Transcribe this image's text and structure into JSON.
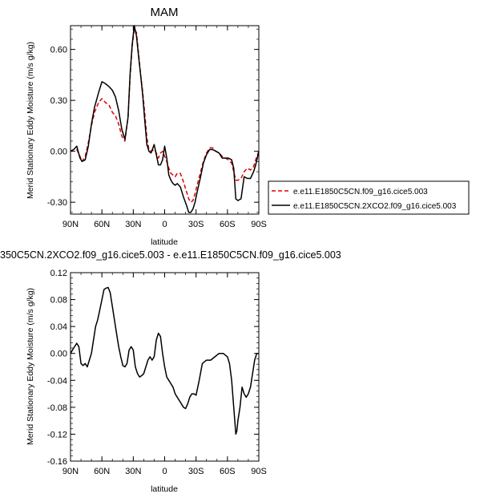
{
  "chart_data": [
    {
      "type": "line",
      "title": "MAM",
      "xlabel": "latitude",
      "ylabel": "Merid Stationary Eddy Moisture (m/s g/kg)",
      "xlim": [
        90,
        -90
      ],
      "ylim": [
        -0.37,
        0.74
      ],
      "xticks": [
        90,
        60,
        30,
        0,
        -30,
        -60,
        -90
      ],
      "xticklabels": [
        "90N",
        "60N",
        "30N",
        "0",
        "30S",
        "60S",
        "90S"
      ],
      "yticks": [
        -0.3,
        0.0,
        0.3,
        0.6
      ],
      "yticklabels": [
        "-0.30",
        "0.00",
        "0.30",
        "0.60"
      ],
      "legend_position": "right",
      "series": [
        {
          "name": "e.e11.E1850C5CN.f09_g16.cice5.003",
          "color": "#dd0000",
          "dash": "dashed",
          "x": [
            90,
            87,
            84,
            81,
            79,
            76,
            73,
            70,
            67,
            63,
            60,
            57,
            53,
            50,
            47,
            44,
            41,
            38,
            35,
            33,
            31,
            29,
            27,
            25,
            23,
            21,
            19,
            17,
            15,
            13,
            10,
            8,
            6,
            4,
            2,
            0,
            -2,
            -4,
            -6,
            -8,
            -10,
            -12,
            -15,
            -18,
            -21,
            -23,
            -25,
            -27,
            -29,
            -31,
            -34,
            -37,
            -40,
            -43,
            -46,
            -49,
            -52,
            -55,
            -58,
            -61,
            -64,
            -66,
            -68,
            -70,
            -73,
            -76,
            -79,
            -82,
            -85,
            -87,
            -90
          ],
          "y": [
            0.0,
            0.01,
            0.01,
            -0.03,
            -0.06,
            -0.03,
            0.05,
            0.15,
            0.23,
            0.29,
            0.31,
            0.29,
            0.27,
            0.23,
            0.21,
            0.16,
            0.09,
            0.06,
            0.2,
            0.44,
            0.62,
            0.72,
            0.7,
            0.58,
            0.45,
            0.35,
            0.22,
            0.08,
            0.01,
            0.0,
            0.01,
            -0.01,
            -0.04,
            -0.01,
            0.0,
            -0.03,
            -0.06,
            -0.1,
            -0.13,
            -0.14,
            -0.15,
            -0.13,
            -0.13,
            -0.18,
            -0.24,
            -0.28,
            -0.3,
            -0.29,
            -0.25,
            -0.2,
            -0.13,
            -0.06,
            -0.01,
            0.02,
            0.02,
            0.0,
            -0.01,
            -0.03,
            -0.04,
            -0.05,
            -0.07,
            -0.12,
            -0.17,
            -0.17,
            -0.16,
            -0.12,
            -0.1,
            -0.11,
            -0.09,
            -0.05,
            0.0
          ]
        },
        {
          "name": "e.e11.E1850C5CN.2XCO2.f09_g16.cice5.003",
          "color": "#000000",
          "dash": "solid",
          "x": [
            90,
            87,
            84,
            81,
            79,
            76,
            73,
            70,
            67,
            63,
            60,
            57,
            53,
            50,
            47,
            44,
            41,
            38,
            35,
            33,
            31,
            29,
            27,
            25,
            23,
            21,
            19,
            17,
            15,
            13,
            10,
            8,
            6,
            4,
            2,
            0,
            -2,
            -4,
            -6,
            -8,
            -10,
            -12,
            -15,
            -18,
            -21,
            -23,
            -25,
            -27,
            -29,
            -31,
            -34,
            -37,
            -40,
            -43,
            -46,
            -49,
            -52,
            -55,
            -58,
            -61,
            -64,
            -66,
            -68,
            -70,
            -73,
            -76,
            -79,
            -82,
            -85,
            -87,
            -90
          ],
          "y": [
            0.0,
            0.01,
            0.03,
            -0.04,
            -0.06,
            -0.05,
            0.03,
            0.16,
            0.26,
            0.35,
            0.41,
            0.4,
            0.38,
            0.36,
            0.32,
            0.24,
            0.13,
            0.07,
            0.2,
            0.46,
            0.63,
            0.74,
            0.68,
            0.56,
            0.45,
            0.33,
            0.18,
            0.04,
            0.0,
            -0.01,
            0.04,
            -0.02,
            -0.08,
            -0.08,
            -0.05,
            0.03,
            -0.04,
            -0.14,
            -0.17,
            -0.19,
            -0.2,
            -0.19,
            -0.21,
            -0.27,
            -0.32,
            -0.36,
            -0.36,
            -0.34,
            -0.3,
            -0.24,
            -0.16,
            -0.07,
            -0.02,
            0.01,
            0.01,
            0.0,
            -0.01,
            -0.04,
            -0.04,
            -0.04,
            -0.05,
            -0.1,
            -0.28,
            -0.29,
            -0.28,
            -0.15,
            -0.16,
            -0.16,
            -0.12,
            -0.08,
            0.0
          ]
        }
      ]
    },
    {
      "type": "line",
      "title": "350C5CN.2XCO2.f09_g16.cice5.003 - e.e11.E1850C5CN.f09_g16.cice5.003",
      "xlabel": "latitude",
      "ylabel": "Merid Stationary Eddy Moisture (m/s g/kg)",
      "xlim": [
        90,
        -90
      ],
      "ylim": [
        -0.16,
        0.12
      ],
      "xticks": [
        90,
        60,
        30,
        0,
        -30,
        -60,
        -90
      ],
      "xticklabels": [
        "90N",
        "60N",
        "30N",
        "0",
        "30S",
        "60S",
        "90S"
      ],
      "yticks": [
        -0.16,
        -0.12,
        -0.08,
        -0.04,
        0.0,
        0.04,
        0.08,
        0.12
      ],
      "yticklabels": [
        "-0.16",
        "-0.12",
        "-0.08",
        "-0.04",
        "0.00",
        "0.04",
        "0.08",
        "0.12"
      ],
      "series": [
        {
          "color": "#000000",
          "dash": "solid",
          "x": [
            90,
            87,
            84,
            82,
            80,
            78,
            76,
            74,
            72,
            70,
            68,
            66,
            64,
            62,
            60,
            58,
            56,
            54,
            52,
            50,
            48,
            46,
            44,
            42,
            40,
            38,
            36,
            34,
            32,
            30,
            28,
            26,
            24,
            22,
            20,
            18,
            16,
            14,
            12,
            10,
            8,
            6,
            4,
            2,
            0,
            -2,
            -4,
            -6,
            -8,
            -10,
            -12,
            -14,
            -16,
            -18,
            -20,
            -22,
            -24,
            -26,
            -28,
            -30,
            -33,
            -36,
            -40,
            -44,
            -48,
            -52,
            -56,
            -60,
            -62,
            -64,
            -66,
            -67,
            -68,
            -69,
            -70,
            -72,
            -74,
            -76,
            -78,
            -80,
            -82,
            -84,
            -86,
            -88,
            -90
          ],
          "y": [
            0.0,
            0.008,
            0.015,
            0.01,
            -0.015,
            -0.018,
            -0.015,
            -0.02,
            -0.01,
            0.0,
            0.02,
            0.04,
            0.05,
            0.065,
            0.08,
            0.095,
            0.097,
            0.098,
            0.09,
            0.07,
            0.05,
            0.03,
            0.01,
            -0.005,
            -0.018,
            -0.02,
            -0.015,
            0.005,
            0.01,
            0.005,
            -0.02,
            -0.03,
            -0.035,
            -0.033,
            -0.03,
            -0.02,
            -0.01,
            -0.005,
            -0.01,
            -0.005,
            0.02,
            0.03,
            0.025,
            0.0,
            -0.02,
            -0.035,
            -0.04,
            -0.045,
            -0.05,
            -0.06,
            -0.065,
            -0.07,
            -0.075,
            -0.08,
            -0.082,
            -0.075,
            -0.065,
            -0.06,
            -0.06,
            -0.062,
            -0.04,
            -0.015,
            -0.01,
            -0.01,
            -0.005,
            0.0,
            0.0,
            -0.005,
            -0.015,
            -0.04,
            -0.08,
            -0.1,
            -0.12,
            -0.115,
            -0.1,
            -0.08,
            -0.05,
            -0.06,
            -0.065,
            -0.06,
            -0.05,
            -0.03,
            -0.01,
            0.0,
            0.0
          ]
        }
      ]
    }
  ]
}
